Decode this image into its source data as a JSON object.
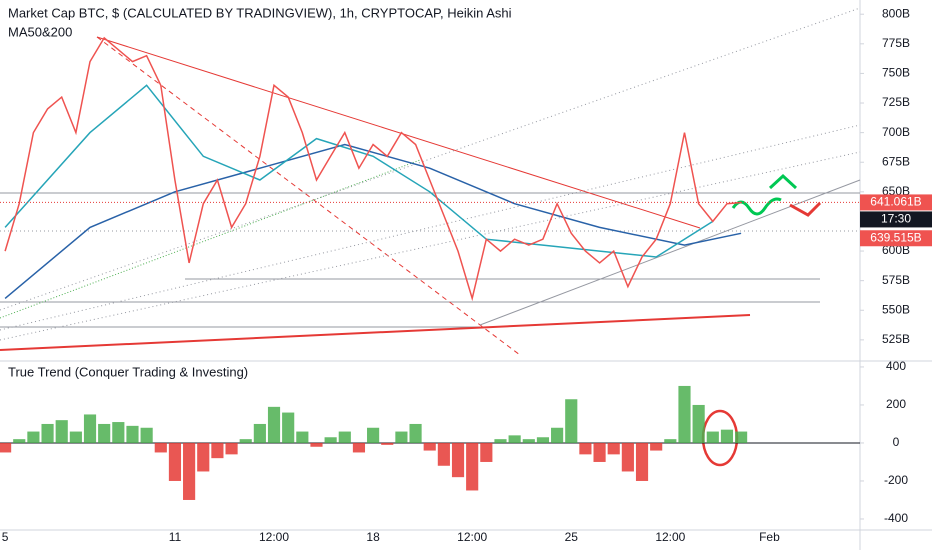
{
  "chart_data": [
    {
      "type": "line",
      "title": "Market Cap BTC, $ (CALCULATED BY TRADINGVIEW), 1h, CRYPTOCAP, Heikin Ashi",
      "subtitle": "MA50&200",
      "color": "#ef5350",
      "x": [
        0,
        0.5,
        1,
        1.5,
        2,
        2.5,
        3,
        3.5,
        4,
        4.5,
        5,
        5.5,
        6,
        6.5,
        7,
        7.5,
        8,
        8.5,
        9,
        9.5,
        10,
        10.5,
        11,
        11.5,
        12,
        12.5,
        13,
        13.5,
        14,
        14.5,
        15,
        15.5,
        16,
        16.5,
        17,
        17.5,
        18,
        18.5,
        19,
        19.5,
        20,
        20.5,
        21,
        21.5,
        22,
        22.5,
        23,
        23.5,
        24,
        24.5,
        25,
        25.5,
        26
      ],
      "values": [
        600,
        640,
        700,
        720,
        730,
        700,
        760,
        780,
        770,
        760,
        765,
        740,
        660,
        590,
        640,
        660,
        620,
        640,
        680,
        740,
        730,
        700,
        660,
        680,
        700,
        670,
        690,
        680,
        700,
        690,
        660,
        630,
        600,
        560,
        610,
        600,
        610,
        605,
        610,
        640,
        615,
        600,
        590,
        600,
        570,
        595,
        610,
        640,
        700,
        640,
        625,
        640,
        641
      ],
      "overlays": [
        {
          "color": "#2962a8",
          "x": [
            0,
            3,
            6,
            9,
            12,
            15,
            18,
            21,
            24,
            26
          ],
          "values": [
            560,
            620,
            650,
            670,
            690,
            670,
            640,
            620,
            605,
            615
          ]
        },
        {
          "color": "#26a5b8",
          "x": [
            0,
            3,
            5,
            7,
            9,
            11,
            13,
            15,
            17,
            19,
            21,
            23,
            25
          ],
          "values": [
            620,
            700,
            740,
            680,
            660,
            695,
            680,
            650,
            610,
            605,
            600,
            595,
            625
          ]
        }
      ],
      "xlim": [
        -0.18,
        30.2
      ],
      "xticks": [
        {
          "value": 0,
          "label": "5"
        },
        {
          "value": 6,
          "label": "11"
        },
        {
          "value": 9.5,
          "label": "12:00"
        },
        {
          "value": 13,
          "label": "18"
        },
        {
          "value": 16.5,
          "label": "12:00"
        },
        {
          "value": 20,
          "label": "25"
        },
        {
          "value": 23.5,
          "label": "12:00"
        },
        {
          "value": 27,
          "label": "Feb"
        }
      ],
      "ylim": [
        508,
        812
      ],
      "yticks": [
        {
          "value": 800,
          "label": "800B"
        },
        {
          "value": 775,
          "label": "775B"
        },
        {
          "value": 750,
          "label": "750B"
        },
        {
          "value": 725,
          "label": "725B"
        },
        {
          "value": 700,
          "label": "700B"
        },
        {
          "value": 675,
          "label": "675B"
        },
        {
          "value": 650,
          "label": "650B"
        },
        {
          "value": 600,
          "label": "600B"
        },
        {
          "value": 575,
          "label": "575B"
        },
        {
          "value": 550,
          "label": "550B"
        },
        {
          "value": 525,
          "label": "525B"
        }
      ],
      "price_labels": [
        {
          "value": 641.061,
          "label": "641.061B"
        },
        {
          "value": 639.515,
          "label": "639.515B"
        }
      ],
      "countdown": "17:30"
    },
    {
      "type": "bar",
      "title": "True Trend (Conquer Trading & Investing)",
      "x": [
        0,
        0.5,
        1,
        1.5,
        2,
        2.5,
        3,
        3.5,
        4,
        4.5,
        5,
        5.5,
        6,
        6.5,
        7,
        7.5,
        8,
        8.5,
        9,
        9.5,
        10,
        10.5,
        11,
        11.5,
        12,
        12.5,
        13,
        13.5,
        14,
        14.5,
        15,
        15.5,
        16,
        16.5,
        17,
        17.5,
        18,
        18.5,
        19,
        19.5,
        20,
        20.5,
        21,
        21.5,
        22,
        22.5,
        23,
        23.5,
        24,
        24.5,
        25,
        25.5,
        26
      ],
      "values": [
        -50,
        20,
        60,
        100,
        120,
        60,
        150,
        100,
        110,
        90,
        80,
        -50,
        -200,
        -300,
        -150,
        -80,
        -60,
        20,
        100,
        190,
        160,
        60,
        -20,
        30,
        60,
        -50,
        80,
        -10,
        60,
        100,
        -40,
        -120,
        -180,
        -250,
        -100,
        20,
        40,
        20,
        30,
        80,
        230,
        -60,
        -100,
        -60,
        -150,
        -200,
        -40,
        20,
        300,
        200,
        60,
        70,
        60
      ],
      "colors": {
        "up": "#4caf50",
        "down": "#e53935"
      },
      "ylim": [
        -458,
        426
      ],
      "yticks": [
        400,
        200,
        0,
        -200,
        -400
      ]
    }
  ]
}
